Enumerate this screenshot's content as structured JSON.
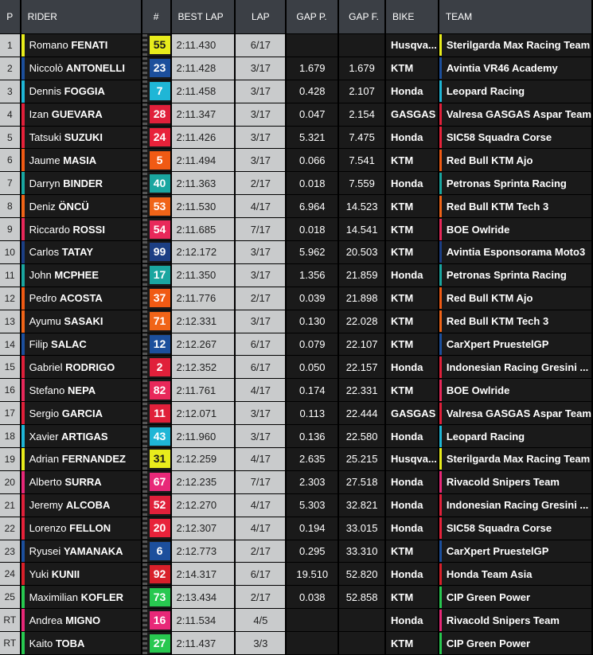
{
  "headers": {
    "pos": "P",
    "rider": "RIDER",
    "num": "#",
    "best": "BEST LAP",
    "lap": "LAP",
    "gap_p": "GAP P.",
    "gap_f": "GAP F.",
    "bike": "BIKE",
    "team": "TEAM"
  },
  "rows": [
    {
      "pos": "1",
      "first": "Romano",
      "last": "FENATI",
      "num": "55",
      "num_bg": "#e8ec1c",
      "num_fg": "#1a1a1a",
      "best": "2:11.430",
      "lap": "6/17",
      "gap_p": "",
      "gap_f": "",
      "bike": "Husqva...",
      "team": "Sterilgarda Max Racing Team",
      "color": "#e8ec1c"
    },
    {
      "pos": "2",
      "first": "Niccolò",
      "last": "ANTONELLI",
      "num": "23",
      "num_bg": "#1c4f9c",
      "num_fg": "#ffffff",
      "best": "2:11.428",
      "lap": "3/17",
      "gap_p": "1.679",
      "gap_f": "1.679",
      "bike": "KTM",
      "team": "Avintia VR46 Academy",
      "color": "#1c4f9c"
    },
    {
      "pos": "3",
      "first": "Dennis",
      "last": "FOGGIA",
      "num": "7",
      "num_bg": "#1fb6d6",
      "num_fg": "#ffffff",
      "best": "2:11.458",
      "lap": "3/17",
      "gap_p": "0.428",
      "gap_f": "2.107",
      "bike": "Honda",
      "team": "Leopard Racing",
      "color": "#1fb6d6"
    },
    {
      "pos": "4",
      "first": "Izan",
      "last": "GUEVARA",
      "num": "28",
      "num_bg": "#e0203a",
      "num_fg": "#ffffff",
      "best": "2:11.347",
      "lap": "3/17",
      "gap_p": "0.047",
      "gap_f": "2.154",
      "bike": "GASGAS",
      "team": "Valresa GASGAS Aspar Team",
      "color": "#e0203a"
    },
    {
      "pos": "5",
      "first": "Tatsuki",
      "last": "SUZUKI",
      "num": "24",
      "num_bg": "#e8223a",
      "num_fg": "#ffffff",
      "best": "2:11.426",
      "lap": "3/17",
      "gap_p": "5.321",
      "gap_f": "7.475",
      "bike": "Honda",
      "team": "SIC58 Squadra Corse",
      "color": "#e8223a"
    },
    {
      "pos": "6",
      "first": "Jaume",
      "last": "MASIA",
      "num": "5",
      "num_bg": "#f05a14",
      "num_fg": "#ffffff",
      "best": "2:11.494",
      "lap": "3/17",
      "gap_p": "0.066",
      "gap_f": "7.541",
      "bike": "KTM",
      "team": "Red Bull KTM Ajo",
      "color": "#f05a14"
    },
    {
      "pos": "7",
      "first": "Darryn",
      "last": "BINDER",
      "num": "40",
      "num_bg": "#1aa6a0",
      "num_fg": "#ffffff",
      "best": "2:11.363",
      "lap": "2/17",
      "gap_p": "0.018",
      "gap_f": "7.559",
      "bike": "Honda",
      "team": "Petronas Sprinta Racing",
      "color": "#1aa6a0"
    },
    {
      "pos": "8",
      "first": "Deniz",
      "last": "ÖNCÜ",
      "num": "53",
      "num_bg": "#f06418",
      "num_fg": "#ffffff",
      "best": "2:11.530",
      "lap": "4/17",
      "gap_p": "6.964",
      "gap_f": "14.523",
      "bike": "KTM",
      "team": "Red Bull KTM Tech 3",
      "color": "#f06418"
    },
    {
      "pos": "9",
      "first": "Riccardo",
      "last": "ROSSI",
      "num": "54",
      "num_bg": "#e8285a",
      "num_fg": "#ffffff",
      "best": "2:11.685",
      "lap": "7/17",
      "gap_p": "0.018",
      "gap_f": "14.541",
      "bike": "KTM",
      "team": "BOE Owlride",
      "color": "#e8285a"
    },
    {
      "pos": "10",
      "first": "Carlos",
      "last": "TATAY",
      "num": "99",
      "num_bg": "#1c3f84",
      "num_fg": "#ffffff",
      "best": "2:12.172",
      "lap": "3/17",
      "gap_p": "5.962",
      "gap_f": "20.503",
      "bike": "KTM",
      "team": "Avintia Esponsorama Moto3",
      "color": "#1c3f84"
    },
    {
      "pos": "11",
      "first": "John",
      "last": "MCPHEE",
      "num": "17",
      "num_bg": "#1aa6a0",
      "num_fg": "#ffffff",
      "best": "2:11.350",
      "lap": "3/17",
      "gap_p": "1.356",
      "gap_f": "21.859",
      "bike": "Honda",
      "team": "Petronas Sprinta Racing",
      "color": "#1aa6a0"
    },
    {
      "pos": "12",
      "first": "Pedro",
      "last": "ACOSTA",
      "num": "37",
      "num_bg": "#f05a14",
      "num_fg": "#ffffff",
      "best": "2:11.776",
      "lap": "2/17",
      "gap_p": "0.039",
      "gap_f": "21.898",
      "bike": "KTM",
      "team": "Red Bull KTM Ajo",
      "color": "#f05a14"
    },
    {
      "pos": "13",
      "first": "Ayumu",
      "last": "SASAKI",
      "num": "71",
      "num_bg": "#f06418",
      "num_fg": "#ffffff",
      "best": "2:12.331",
      "lap": "3/17",
      "gap_p": "0.130",
      "gap_f": "22.028",
      "bike": "KTM",
      "team": "Red Bull KTM Tech 3",
      "color": "#f06418"
    },
    {
      "pos": "14",
      "first": "Filip",
      "last": "SALAC",
      "num": "12",
      "num_bg": "#1c4f9c",
      "num_fg": "#ffffff",
      "best": "2:12.267",
      "lap": "6/17",
      "gap_p": "0.079",
      "gap_f": "22.107",
      "bike": "KTM",
      "team": "CarXpert PruestelGP",
      "color": "#1c4f9c"
    },
    {
      "pos": "15",
      "first": "Gabriel",
      "last": "RODRIGO",
      "num": "2",
      "num_bg": "#e0203a",
      "num_fg": "#ffffff",
      "best": "2:12.352",
      "lap": "6/17",
      "gap_p": "0.050",
      "gap_f": "22.157",
      "bike": "Honda",
      "team": "Indonesian Racing Gresini ...",
      "color": "#e0203a"
    },
    {
      "pos": "16",
      "first": "Stefano",
      "last": "NEPA",
      "num": "82",
      "num_bg": "#e8285a",
      "num_fg": "#ffffff",
      "best": "2:11.761",
      "lap": "4/17",
      "gap_p": "0.174",
      "gap_f": "22.331",
      "bike": "KTM",
      "team": "BOE Owlride",
      "color": "#e8285a"
    },
    {
      "pos": "17",
      "first": "Sergio",
      "last": "GARCIA",
      "num": "11",
      "num_bg": "#e0203a",
      "num_fg": "#ffffff",
      "best": "2:12.071",
      "lap": "3/17",
      "gap_p": "0.113",
      "gap_f": "22.444",
      "bike": "GASGAS",
      "team": "Valresa GASGAS Aspar Team",
      "color": "#e0203a"
    },
    {
      "pos": "18",
      "first": "Xavier",
      "last": "ARTIGAS",
      "num": "43",
      "num_bg": "#1fb6d6",
      "num_fg": "#ffffff",
      "best": "2:11.960",
      "lap": "3/17",
      "gap_p": "0.136",
      "gap_f": "22.580",
      "bike": "Honda",
      "team": "Leopard Racing",
      "color": "#1fb6d6"
    },
    {
      "pos": "19",
      "first": "Adrian",
      "last": "FERNANDEZ",
      "num": "31",
      "num_bg": "#e8ec1c",
      "num_fg": "#1a1a1a",
      "best": "2:12.259",
      "lap": "4/17",
      "gap_p": "2.635",
      "gap_f": "25.215",
      "bike": "Husqva...",
      "team": "Sterilgarda Max Racing Team",
      "color": "#e8ec1c"
    },
    {
      "pos": "20",
      "first": "Alberto",
      "last": "SURRA",
      "num": "67",
      "num_bg": "#e82878",
      "num_fg": "#ffffff",
      "best": "2:12.235",
      "lap": "7/17",
      "gap_p": "2.303",
      "gap_f": "27.518",
      "bike": "Honda",
      "team": "Rivacold Snipers Team",
      "color": "#e82878"
    },
    {
      "pos": "21",
      "first": "Jeremy",
      "last": "ALCOBA",
      "num": "52",
      "num_bg": "#e0203a",
      "num_fg": "#ffffff",
      "best": "2:12.270",
      "lap": "4/17",
      "gap_p": "5.303",
      "gap_f": "32.821",
      "bike": "Honda",
      "team": "Indonesian Racing Gresini ...",
      "color": "#e0203a"
    },
    {
      "pos": "22",
      "first": "Lorenzo",
      "last": "FELLON",
      "num": "20",
      "num_bg": "#e8223a",
      "num_fg": "#ffffff",
      "best": "2:12.307",
      "lap": "4/17",
      "gap_p": "0.194",
      "gap_f": "33.015",
      "bike": "Honda",
      "team": "SIC58 Squadra Corse",
      "color": "#e8223a"
    },
    {
      "pos": "23",
      "first": "Ryusei",
      "last": "YAMANAKA",
      "num": "6",
      "num_bg": "#1c4f9c",
      "num_fg": "#ffffff",
      "best": "2:12.773",
      "lap": "2/17",
      "gap_p": "0.295",
      "gap_f": "33.310",
      "bike": "KTM",
      "team": "CarXpert PruestelGP",
      "color": "#1c4f9c"
    },
    {
      "pos": "24",
      "first": "Yuki",
      "last": "KUNII",
      "num": "92",
      "num_bg": "#d8202a",
      "num_fg": "#ffffff",
      "best": "2:14.317",
      "lap": "6/17",
      "gap_p": "19.510",
      "gap_f": "52.820",
      "bike": "Honda",
      "team": "Honda Team Asia",
      "color": "#d8202a"
    },
    {
      "pos": "25",
      "first": "Maximilian",
      "last": "KOFLER",
      "num": "73",
      "num_bg": "#28c850",
      "num_fg": "#ffffff",
      "best": "2:13.434",
      "lap": "2/17",
      "gap_p": "0.038",
      "gap_f": "52.858",
      "bike": "KTM",
      "team": "CIP Green Power",
      "color": "#28c850"
    },
    {
      "pos": "RT",
      "first": "Andrea",
      "last": "MIGNO",
      "num": "16",
      "num_bg": "#e82878",
      "num_fg": "#ffffff",
      "best": "2:11.534",
      "lap": "4/5",
      "gap_p": "",
      "gap_f": "",
      "bike": "Honda",
      "team": "Rivacold Snipers Team",
      "color": "#e82878"
    },
    {
      "pos": "RT",
      "first": "Kaito",
      "last": "TOBA",
      "num": "27",
      "num_bg": "#28c850",
      "num_fg": "#ffffff",
      "best": "2:11.437",
      "lap": "3/3",
      "gap_p": "",
      "gap_f": "",
      "bike": "KTM",
      "team": "CIP Green Power",
      "color": "#28c850"
    }
  ]
}
